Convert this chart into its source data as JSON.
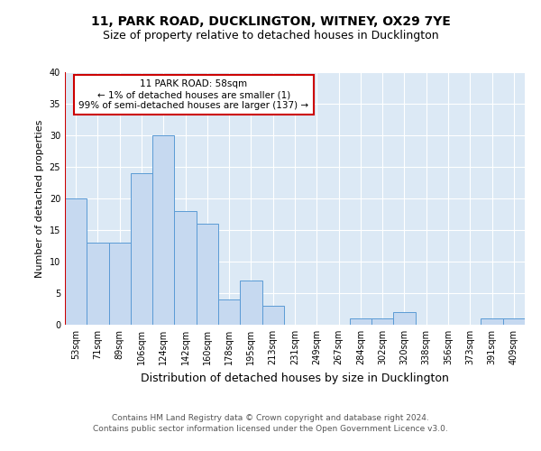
{
  "title1": "11, PARK ROAD, DUCKLINGTON, WITNEY, OX29 7YE",
  "title2": "Size of property relative to detached houses in Ducklington",
  "xlabel": "Distribution of detached houses by size in Ducklington",
  "ylabel": "Number of detached properties",
  "categories": [
    "53sqm",
    "71sqm",
    "89sqm",
    "106sqm",
    "124sqm",
    "142sqm",
    "160sqm",
    "178sqm",
    "195sqm",
    "213sqm",
    "231sqm",
    "249sqm",
    "267sqm",
    "284sqm",
    "302sqm",
    "320sqm",
    "338sqm",
    "356sqm",
    "373sqm",
    "391sqm",
    "409sqm"
  ],
  "values": [
    20,
    13,
    13,
    24,
    30,
    18,
    16,
    4,
    7,
    3,
    0,
    0,
    0,
    1,
    1,
    2,
    0,
    0,
    0,
    1,
    1
  ],
  "bar_color": "#c6d9f0",
  "bar_edge_color": "#5b9bd5",
  "annotation_box_color": "#ffffff",
  "annotation_box_edge": "#cc0000",
  "annotation_text_line1": "11 PARK ROAD: 58sqm",
  "annotation_text_line2": "← 1% of detached houses are smaller (1)",
  "annotation_text_line3": "99% of semi-detached houses are larger (137) →",
  "vline_color": "#cc0000",
  "ylim": [
    0,
    40
  ],
  "yticks": [
    0,
    5,
    10,
    15,
    20,
    25,
    30,
    35,
    40
  ],
  "footer1": "Contains HM Land Registry data © Crown copyright and database right 2024.",
  "footer2": "Contains public sector information licensed under the Open Government Licence v3.0.",
  "bg_color": "#ffffff",
  "plot_bg_color": "#dce9f5",
  "grid_color": "#ffffff",
  "title1_fontsize": 10,
  "title2_fontsize": 9,
  "xlabel_fontsize": 9,
  "ylabel_fontsize": 8,
  "tick_fontsize": 7,
  "footer_fontsize": 6.5,
  "annotation_fontsize": 7.5
}
